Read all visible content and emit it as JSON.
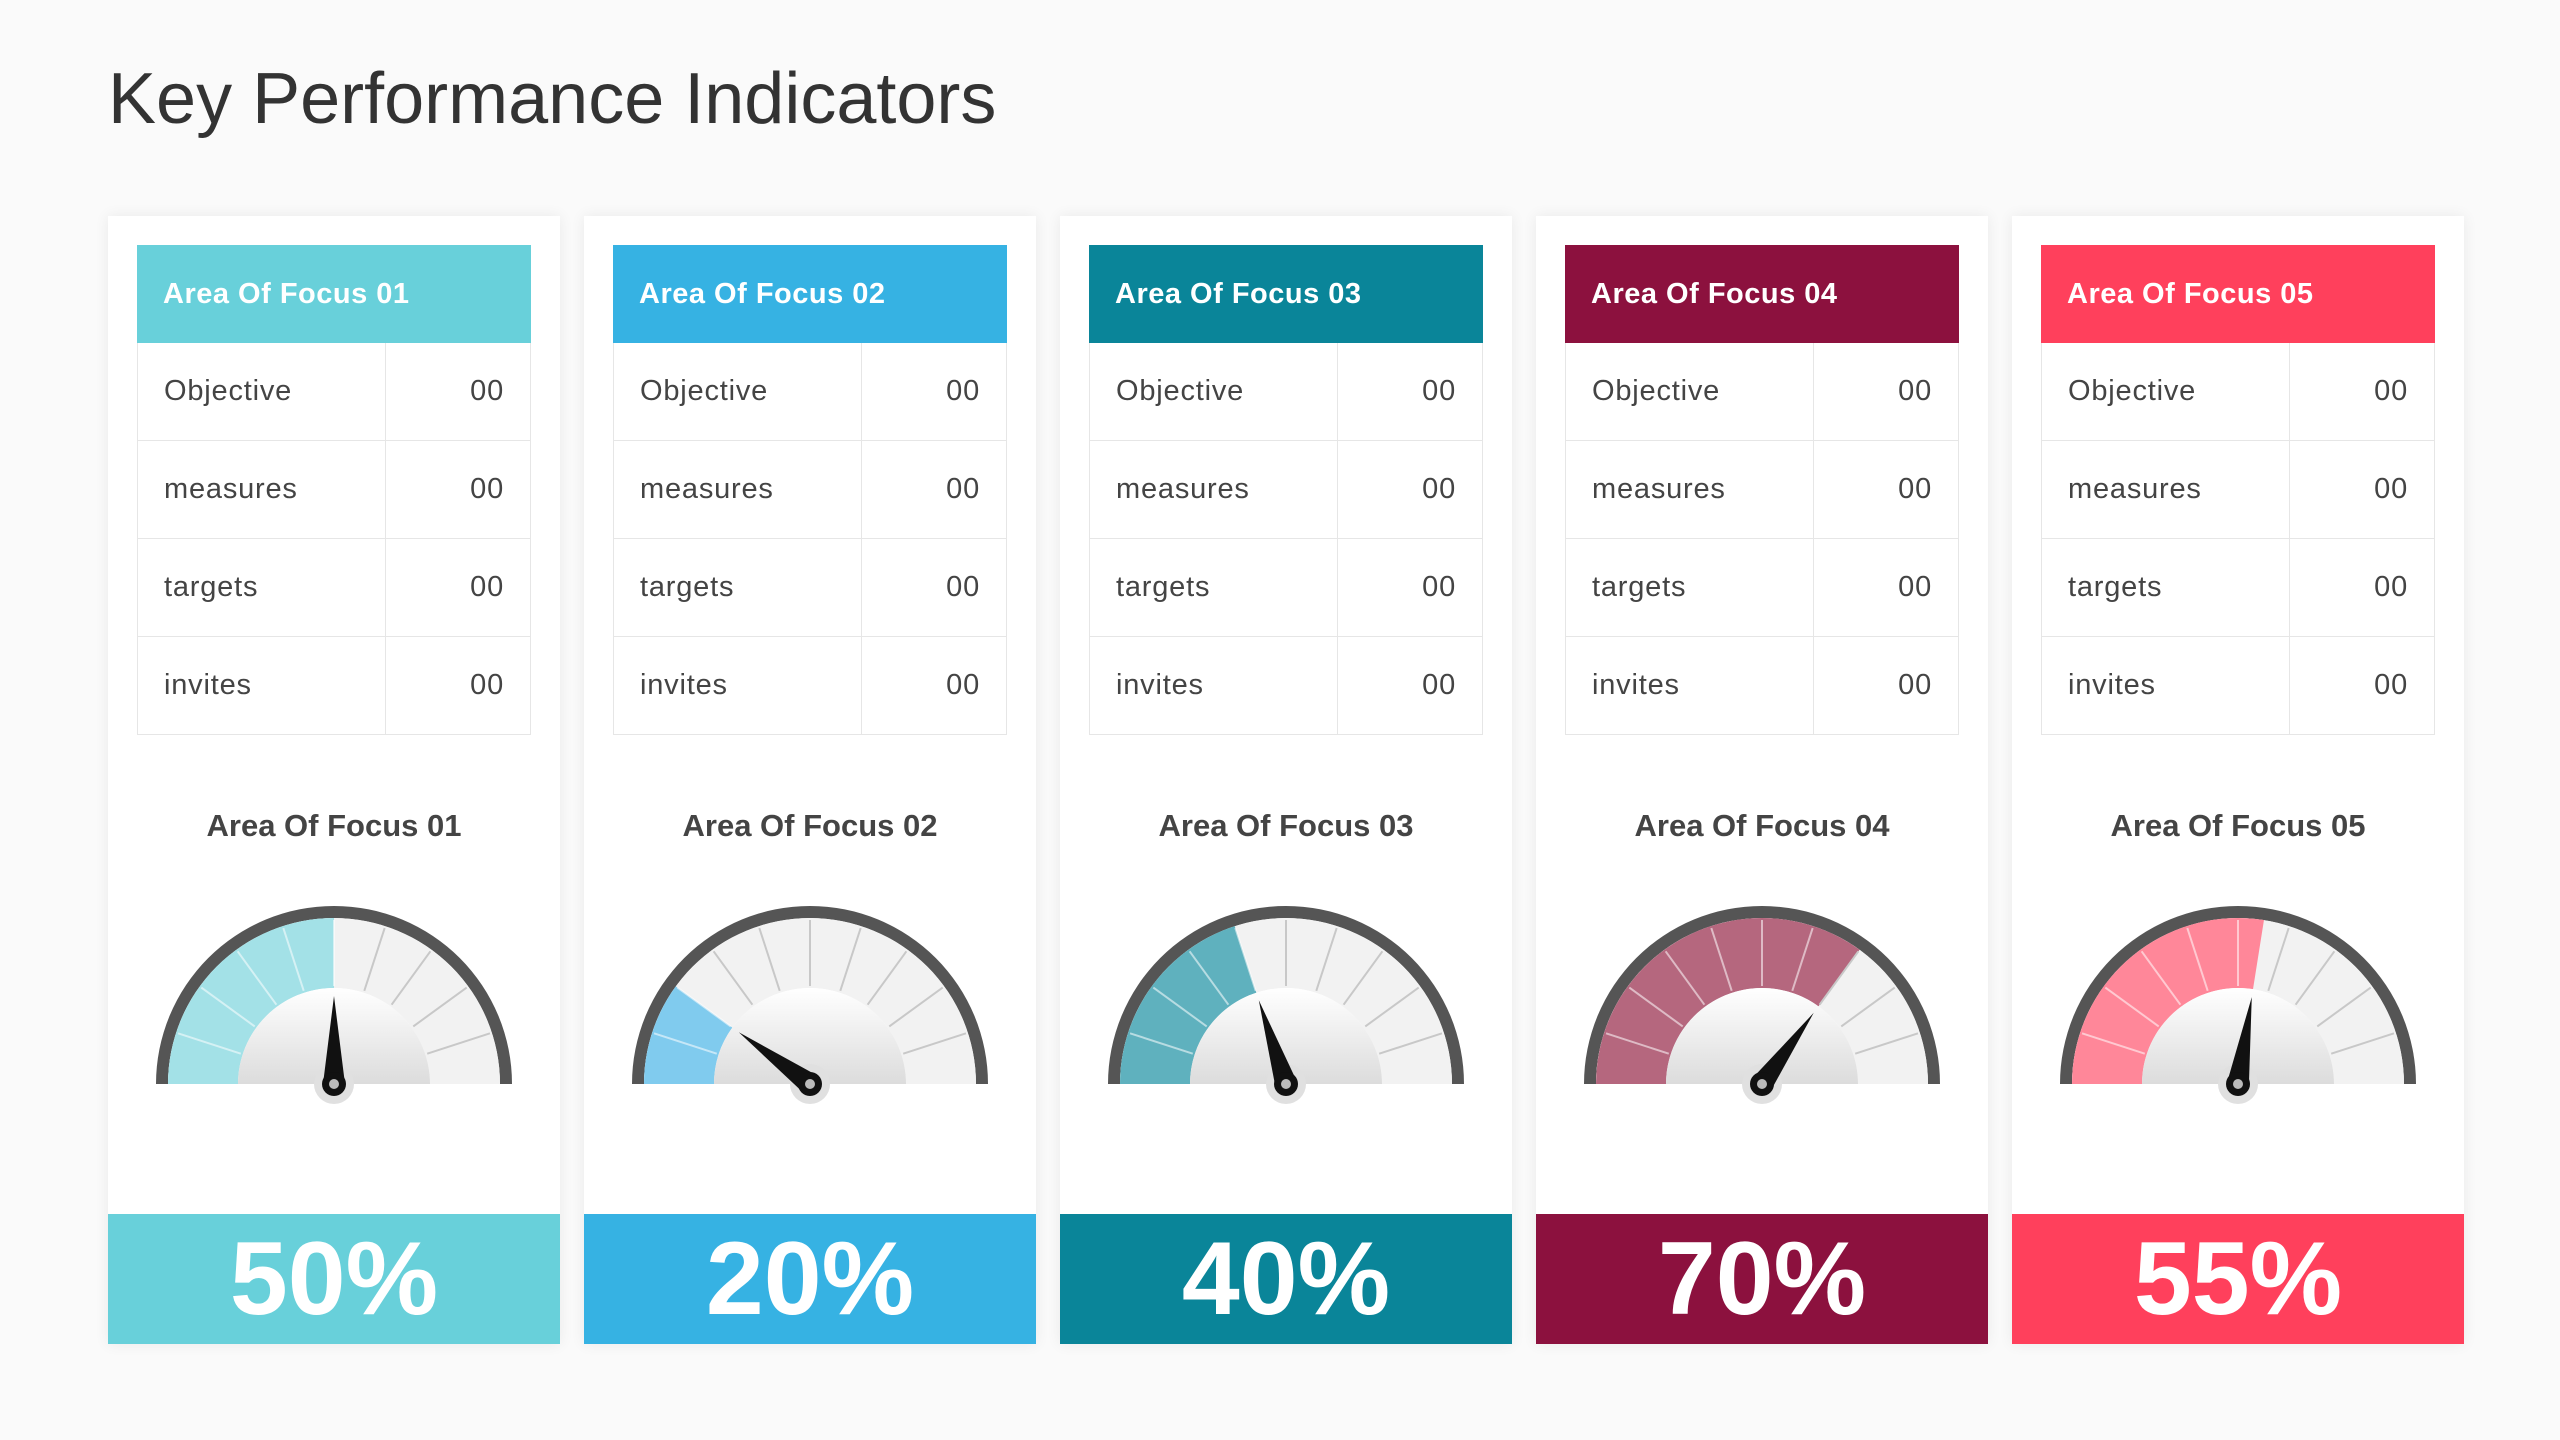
{
  "title": "Key Performance Indicators",
  "colors": {
    "needle": "#111111",
    "rim": "#555555",
    "track": "#f2f2f2",
    "tick": "#c8c8c8"
  },
  "areas": [
    {
      "name": "Area Of Focus 01",
      "color": "#68d0da",
      "gauge_fill": "#a3e1e7",
      "percent": 50,
      "percent_label": "50%",
      "rows": [
        {
          "label": "Objective",
          "value": "00"
        },
        {
          "label": "measures",
          "value": "00"
        },
        {
          "label": "targets",
          "value": "00"
        },
        {
          "label": "invites",
          "value": "00"
        }
      ]
    },
    {
      "name": "Area Of Focus 02",
      "color": "#36b2e3",
      "gauge_fill": "#80cbee",
      "percent": 20,
      "percent_label": "20%",
      "rows": [
        {
          "label": "Objective",
          "value": "00"
        },
        {
          "label": "measures",
          "value": "00"
        },
        {
          "label": "targets",
          "value": "00"
        },
        {
          "label": "invites",
          "value": "00"
        }
      ]
    },
    {
      "name": "Area Of Focus 03",
      "color": "#0a8599",
      "gauge_fill": "#5fb1be",
      "percent": 40,
      "percent_label": "40%",
      "rows": [
        {
          "label": "Objective",
          "value": "00"
        },
        {
          "label": "measures",
          "value": "00"
        },
        {
          "label": "targets",
          "value": "00"
        },
        {
          "label": "invites",
          "value": "00"
        }
      ]
    },
    {
      "name": "Area Of Focus 04",
      "color": "#8c113e",
      "gauge_fill": "#b5677e",
      "percent": 70,
      "percent_label": "70%",
      "rows": [
        {
          "label": "Objective",
          "value": "00"
        },
        {
          "label": "measures",
          "value": "00"
        },
        {
          "label": "targets",
          "value": "00"
        },
        {
          "label": "invites",
          "value": "00"
        }
      ]
    },
    {
      "name": "Area Of Focus 05",
      "color": "#ff405c",
      "gauge_fill": "#ff8799",
      "percent": 55,
      "percent_label": "55%",
      "rows": [
        {
          "label": "Objective",
          "value": "00"
        },
        {
          "label": "measures",
          "value": "00"
        },
        {
          "label": "targets",
          "value": "00"
        },
        {
          "label": "invites",
          "value": "00"
        }
      ]
    }
  ]
}
